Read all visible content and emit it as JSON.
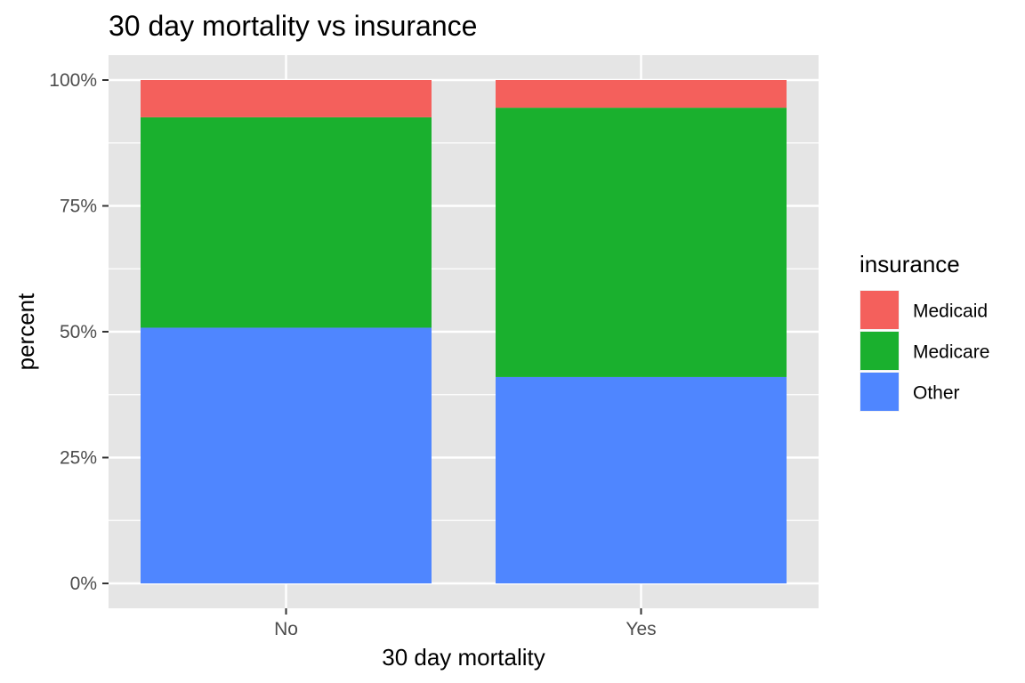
{
  "chart_data": {
    "type": "bar",
    "stacked": true,
    "position": "fill",
    "title": "30 day mortality vs insurance",
    "xlabel": "30 day mortality",
    "ylabel": "percent",
    "categories": [
      "No",
      "Yes"
    ],
    "ylim": [
      0,
      1
    ],
    "yticks": [
      0,
      0.25,
      0.5,
      0.75,
      1.0
    ],
    "ytick_labels": [
      "0%",
      "25%",
      "50%",
      "75%",
      "100%"
    ],
    "grid": true,
    "legend": {
      "title": "insurance",
      "position": "right"
    },
    "series": [
      {
        "name": "Other",
        "values": [
          0.508,
          0.41
        ],
        "color": "#4F86FF"
      },
      {
        "name": "Medicare",
        "values": [
          0.418,
          0.535
        ],
        "color": "#1AB02E"
      },
      {
        "name": "Medicaid",
        "values": [
          0.074,
          0.055
        ],
        "color": "#F4605C"
      }
    ],
    "legend_order": [
      "Medicaid",
      "Medicare",
      "Other"
    ],
    "panel_color": "#E5E5E5",
    "grid_color": "#FFFFFF"
  }
}
